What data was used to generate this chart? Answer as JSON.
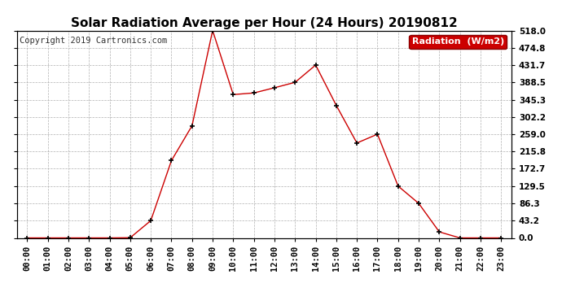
{
  "title": "Solar Radiation Average per Hour (24 Hours) 20190812",
  "copyright": "Copyright 2019 Cartronics.com",
  "legend_label": "Radiation  (W/m2)",
  "hours": [
    "00:00",
    "01:00",
    "02:00",
    "03:00",
    "04:00",
    "05:00",
    "06:00",
    "07:00",
    "08:00",
    "09:00",
    "10:00",
    "11:00",
    "12:00",
    "13:00",
    "14:00",
    "15:00",
    "16:00",
    "17:00",
    "18:00",
    "19:00",
    "20:00",
    "21:00",
    "22:00",
    "23:00"
  ],
  "values": [
    0.0,
    0.0,
    0.0,
    0.0,
    0.0,
    0.5,
    43.2,
    193.0,
    280.0,
    518.0,
    358.0,
    362.0,
    375.0,
    388.5,
    431.7,
    331.0,
    237.0,
    259.0,
    129.5,
    86.3,
    15.0,
    0.0,
    0.0,
    0.0
  ],
  "line_color": "#cc0000",
  "marker": "+",
  "marker_color": "#000000",
  "bg_color": "#ffffff",
  "grid_color": "#b0b0b0",
  "ylim": [
    0,
    518.0
  ],
  "yticks": [
    0.0,
    43.2,
    86.3,
    129.5,
    172.7,
    215.8,
    259.0,
    302.2,
    345.3,
    388.5,
    431.7,
    474.8,
    518.0
  ],
  "title_fontsize": 11,
  "copyright_fontsize": 7.5,
  "legend_fontsize": 8,
  "tick_fontsize": 7.5,
  "legend_color": "#cc0000"
}
